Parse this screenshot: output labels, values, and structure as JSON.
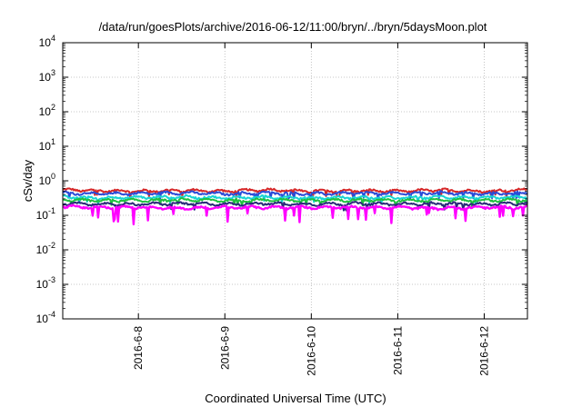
{
  "chart_data": {
    "type": "line",
    "title": "/data/run/goesPlots/archive/2016-06-12/11:00/bryn/../bryn/5daysMoon.plot",
    "xlabel": "Coordinated Universal Time (UTC)",
    "ylabel": "cSv/day",
    "yscale": "log",
    "ylim": [
      0.0001,
      10000
    ],
    "xlim": [
      "2016-06-07 03:00",
      "2016-06-12 12:00"
    ],
    "grid": true,
    "legend": "none",
    "x_ticks": [
      "2016-6-8",
      "2016-6-9",
      "2016-6-10",
      "2016-6-11",
      "2016-6-12"
    ],
    "y_ticks": [
      {
        "base": "10",
        "exp": "-4",
        "value": 0.0001
      },
      {
        "base": "10",
        "exp": "-3",
        "value": 0.001
      },
      {
        "base": "10",
        "exp": "-2",
        "value": 0.01
      },
      {
        "base": "10",
        "exp": "-1",
        "value": 0.1
      },
      {
        "base": "10",
        "exp": "0",
        "value": 1
      },
      {
        "base": "10",
        "exp": "1",
        "value": 10
      },
      {
        "base": "10",
        "exp": "2",
        "value": 100
      },
      {
        "base": "10",
        "exp": "3",
        "value": 1000
      },
      {
        "base": "10",
        "exp": "4",
        "value": 10000
      }
    ],
    "x": [
      "2016-06-07 03:00",
      "2016-06-07 12:00",
      "2016-06-08 00:00",
      "2016-06-08 12:00",
      "2016-06-09 00:00",
      "2016-06-09 12:00",
      "2016-06-10 00:00",
      "2016-06-10 12:00",
      "2016-06-11 00:00",
      "2016-06-11 12:00",
      "2016-06-12 00:00",
      "2016-06-12 12:00"
    ],
    "series": [
      {
        "color": "#d62728",
        "values": [
          0.55,
          0.52,
          0.5,
          0.53,
          0.5,
          0.55,
          0.5,
          0.52,
          0.5,
          0.54,
          0.5,
          0.55
        ]
      },
      {
        "color": "#2a4bd7",
        "values": [
          0.45,
          0.42,
          0.43,
          0.45,
          0.42,
          0.45,
          0.42,
          0.44,
          0.43,
          0.45,
          0.42,
          0.45
        ]
      },
      {
        "color": "#17d4d4",
        "values": [
          0.34,
          0.32,
          0.33,
          0.34,
          0.32,
          0.34,
          0.32,
          0.33,
          0.32,
          0.34,
          0.32,
          0.34
        ]
      },
      {
        "color": "#1fbf3f",
        "values": [
          0.28,
          0.27,
          0.27,
          0.28,
          0.27,
          0.28,
          0.27,
          0.28,
          0.27,
          0.28,
          0.27,
          0.28
        ]
      },
      {
        "color": "#2a2a7a",
        "values": [
          0.22,
          0.21,
          0.21,
          0.22,
          0.21,
          0.22,
          0.21,
          0.22,
          0.21,
          0.22,
          0.21,
          0.22
        ]
      },
      {
        "color": "#ff00ff",
        "values": [
          0.18,
          0.17,
          0.17,
          0.16,
          0.17,
          0.17,
          0.17,
          0.17,
          0.17,
          0.16,
          0.17,
          0.17
        ]
      }
    ]
  }
}
